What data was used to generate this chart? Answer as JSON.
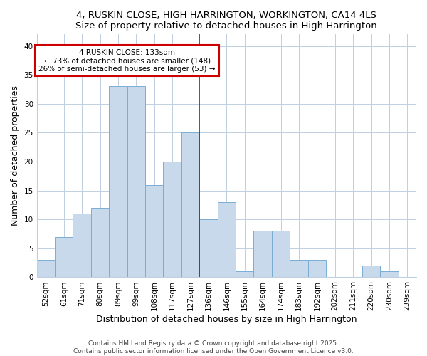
{
  "title1": "4, RUSKIN CLOSE, HIGH HARRINGTON, WORKINGTON, CA14 4LS",
  "title2": "Size of property relative to detached houses in High Harrington",
  "xlabel": "Distribution of detached houses by size in High Harrington",
  "ylabel": "Number of detached properties",
  "categories": [
    "52sqm",
    "61sqm",
    "71sqm",
    "80sqm",
    "89sqm",
    "99sqm",
    "108sqm",
    "117sqm",
    "127sqm",
    "136sqm",
    "146sqm",
    "155sqm",
    "164sqm",
    "174sqm",
    "183sqm",
    "192sqm",
    "202sqm",
    "211sqm",
    "220sqm",
    "230sqm",
    "239sqm"
  ],
  "values": [
    3,
    7,
    11,
    12,
    33,
    33,
    16,
    20,
    25,
    10,
    13,
    1,
    8,
    8,
    3,
    3,
    0,
    0,
    2,
    1,
    0
  ],
  "bar_color": "#c8d9ec",
  "bar_edge_color": "#7aadd4",
  "grid_color": "#c0cfe0",
  "vline_color": "#cc0000",
  "annotation_text": "4 RUSKIN CLOSE: 133sqm\n← 73% of detached houses are smaller (148)\n26% of semi-detached houses are larger (53) →",
  "annotation_box_facecolor": "#ffffff",
  "annotation_box_edgecolor": "#cc0000",
  "ylim": [
    0,
    42
  ],
  "yticks": [
    0,
    5,
    10,
    15,
    20,
    25,
    30,
    35,
    40
  ],
  "footer": "Contains HM Land Registry data © Crown copyright and database right 2025.\nContains public sector information licensed under the Open Government Licence v3.0.",
  "bg_color": "#ffffff",
  "title_fontsize": 9.5,
  "tick_fontsize": 7.5,
  "axis_label_fontsize": 9,
  "footer_fontsize": 6.5,
  "annotation_fontsize": 7.5,
  "vline_x_index": 9.0
}
